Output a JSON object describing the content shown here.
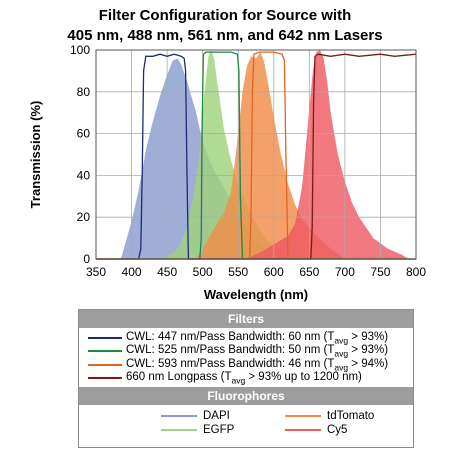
{
  "chart_data": {
    "type": "area",
    "title_lines": [
      "Filter Configuration for Source with",
      "405 nm, 488 nm, 561 nm, and 642 nm Lasers"
    ],
    "xlabel": "Wavelength (nm)",
    "ylabel": "Transmission (%)",
    "xlim": [
      350,
      800
    ],
    "ylim": [
      0,
      100
    ],
    "xticks": [
      350,
      400,
      450,
      500,
      550,
      600,
      650,
      700,
      750,
      800
    ],
    "yticks": [
      0,
      20,
      40,
      60,
      80,
      100
    ],
    "grid": true,
    "fluorophores": [
      {
        "name": "DAPI",
        "color": "#8a9ccd",
        "x": [
          385,
          400,
          410,
          420,
          430,
          440,
          450,
          458,
          465,
          470,
          478,
          490,
          500,
          510,
          520,
          530,
          540,
          550,
          560,
          570,
          580,
          590,
          600,
          610,
          620
        ],
        "y": [
          0,
          18,
          33,
          52,
          66,
          78,
          88,
          95,
          96,
          93,
          85,
          71,
          56,
          47,
          40,
          34,
          28,
          22,
          16,
          11,
          7,
          4,
          2,
          1,
          0
        ]
      },
      {
        "name": "EGFP",
        "color": "#9fd37c",
        "x": [
          440,
          460,
          470,
          478,
          484,
          488,
          495,
          502,
          508,
          512,
          516,
          520,
          530,
          540,
          550,
          560,
          570,
          580,
          590,
          600,
          620,
          640
        ],
        "y": [
          0,
          3,
          8,
          15,
          25,
          32,
          48,
          78,
          97,
          100,
          96,
          86,
          62,
          47,
          36,
          28,
          20,
          14,
          9,
          6,
          2,
          0
        ]
      },
      {
        "name": "tdTomato",
        "color": "#f28c48",
        "x": [
          490,
          500,
          510,
          520,
          530,
          540,
          550,
          556,
          562,
          568,
          575,
          581,
          586,
          590,
          600,
          610,
          620,
          630,
          640,
          650,
          660,
          680,
          700
        ],
        "y": [
          0,
          5,
          11,
          17,
          22,
          32,
          60,
          80,
          92,
          97,
          96,
          99,
          95,
          88,
          68,
          50,
          36,
          26,
          19,
          15,
          11,
          5,
          0
        ]
      },
      {
        "name": "Cy5",
        "color": "#ee5a63",
        "x": [
          560,
          580,
          600,
          620,
          630,
          640,
          650,
          655,
          660,
          665,
          670,
          675,
          680,
          690,
          700,
          710,
          720,
          740,
          760,
          780,
          790
        ],
        "y": [
          0,
          3,
          7,
          11,
          17,
          35,
          72,
          90,
          99,
          100,
          96,
          85,
          70,
          50,
          37,
          27,
          20,
          10,
          5,
          2,
          0
        ]
      }
    ],
    "filters": [
      {
        "label_pre": "CWL: 447 nm/Pass Bandwidth: 60 nm (T",
        "label_sub": "avg",
        "label_post": " > 93%)",
        "color": "#1f2a78",
        "x": [
          350,
          410,
          413,
          415,
          417,
          420,
          430,
          440,
          450,
          460,
          470,
          474,
          476,
          478,
          480,
          800
        ],
        "y": [
          0,
          0,
          5,
          40,
          90,
          97,
          97,
          98,
          97,
          98,
          97,
          96,
          90,
          40,
          0,
          0
        ]
      },
      {
        "label_pre": "CWL: 525 nm/Pass Bandwidth: 50 nm (T",
        "label_sub": "avg",
        "label_post": " > 93%)",
        "color": "#1e8a3a",
        "x": [
          350,
          496,
          498,
          499,
          501,
          505,
          520,
          540,
          549,
          551,
          553,
          556,
          800
        ],
        "y": [
          0,
          0,
          10,
          60,
          98,
          99,
          99,
          99,
          98,
          90,
          30,
          0,
          0
        ]
      },
      {
        "label_pre": "CWL: 593 nm/Pass Bandwidth: 46 nm (T",
        "label_sub": "avg",
        "label_post": " > 94%)",
        "color": "#e0661c",
        "x": [
          350,
          566,
          568,
          570,
          572,
          580,
          600,
          612,
          615,
          617,
          620,
          800
        ],
        "y": [
          0,
          0,
          20,
          80,
          98,
          99,
          99,
          98,
          95,
          50,
          0,
          0
        ]
      },
      {
        "label_pre": "660 nm Longpass (T",
        "label_sub": "avg",
        "label_post": " > 93% up to 1200 nm)",
        "color": "#7a1b14",
        "x": [
          350,
          652,
          654,
          656,
          658,
          662,
          680,
          700,
          720,
          750,
          770,
          800
        ],
        "y": [
          0,
          0,
          15,
          75,
          97,
          98,
          97,
          98,
          97,
          98,
          97,
          98
        ]
      }
    ]
  },
  "legend": {
    "filters_heading": "Filters",
    "fluorophores_heading": "Fluorophores"
  }
}
